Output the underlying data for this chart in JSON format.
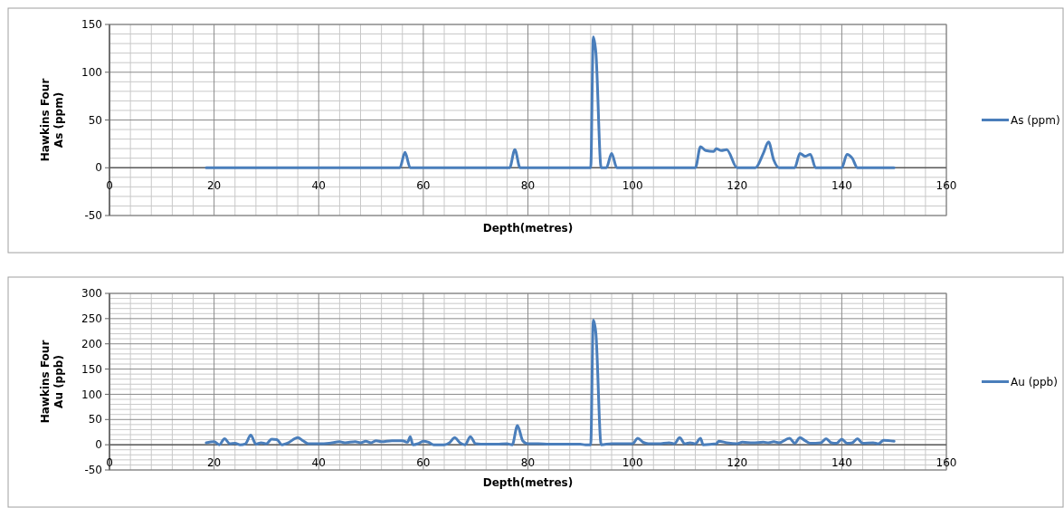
{
  "chart_data": [
    {
      "type": "line",
      "xlabel": "Depth(metres)",
      "ylabel": "Hawkins Four\nAs (ppm)",
      "xlim": [
        0,
        160
      ],
      "xticks": [
        0,
        20,
        40,
        60,
        80,
        100,
        120,
        140,
        160
      ],
      "ylim": [
        -50,
        150
      ],
      "yticks": [
        -50,
        0,
        50,
        100,
        150
      ],
      "grid": true,
      "legend": "right",
      "series": [
        {
          "name": "As (ppm)",
          "color": "#4a7ebb",
          "x": [
            18.5,
            55.5,
            56.5,
            57.5,
            76.5,
            77.5,
            78.5,
            92,
            92.5,
            93,
            94,
            95,
            96,
            97,
            112,
            113,
            114,
            115.5,
            116,
            117,
            118,
            120,
            123.5,
            125,
            126,
            127,
            128,
            130,
            131,
            132,
            133,
            134,
            135,
            140,
            141,
            142,
            143,
            150
          ],
          "values": [
            0,
            0,
            16,
            0,
            0,
            19,
            0,
            0,
            137,
            120,
            0,
            0,
            15,
            0,
            0,
            22,
            18,
            17,
            20,
            18,
            19,
            0,
            0,
            15,
            27,
            8,
            0,
            0,
            0,
            15,
            12,
            14,
            0,
            0,
            14,
            10,
            0,
            0
          ]
        }
      ]
    },
    {
      "type": "line",
      "xlabel": "Depth(metres)",
      "ylabel": "Hawkins Four\nAu (ppb)",
      "xlim": [
        0,
        160
      ],
      "xticks": [
        0,
        20,
        40,
        60,
        80,
        100,
        120,
        140,
        160
      ],
      "ylim": [
        -50,
        300
      ],
      "yticks": [
        -50,
        0,
        50,
        100,
        150,
        200,
        250,
        300
      ],
      "grid": true,
      "legend": "right",
      "series": [
        {
          "name": "Au (ppb)",
          "color": "#4a7ebb",
          "x": [
            18.5,
            20,
            21,
            22,
            23,
            24,
            25,
            26,
            27,
            28,
            29,
            30,
            31,
            32,
            33,
            34,
            36,
            37,
            38,
            40,
            42,
            44,
            45,
            47,
            48,
            49,
            50,
            51,
            52,
            54,
            56,
            57,
            57.5,
            58,
            59,
            60,
            61,
            62,
            64,
            65,
            66,
            67,
            68,
            69,
            70,
            72,
            74,
            76,
            77,
            78,
            79,
            80,
            82,
            84,
            86,
            88,
            90,
            91,
            92,
            92.5,
            93,
            94,
            96,
            98,
            100,
            101,
            102,
            103,
            105,
            107,
            108,
            109,
            110,
            111,
            112,
            113,
            113.5,
            116,
            116.5,
            118,
            120,
            121,
            123,
            125,
            126,
            127,
            128,
            130,
            131,
            132,
            133,
            134,
            136,
            137,
            138,
            139,
            140,
            141,
            142,
            143,
            144,
            146,
            147,
            148,
            150
          ],
          "values": [
            4,
            6,
            0,
            12,
            2,
            3,
            0,
            2,
            19,
            1,
            4,
            2,
            11,
            10,
            0,
            3,
            14,
            8,
            2,
            2,
            3,
            6,
            4,
            6,
            4,
            7,
            4,
            8,
            6,
            8,
            8,
            5,
            16,
            0,
            2,
            7,
            5,
            0,
            0,
            4,
            14,
            4,
            0,
            16,
            2,
            1,
            1,
            2,
            0,
            38,
            8,
            2,
            2,
            1,
            1,
            1,
            1,
            0,
            0,
            247,
            220,
            0,
            2,
            2,
            2,
            13,
            5,
            2,
            2,
            4,
            2,
            14,
            2,
            4,
            2,
            13,
            0,
            2,
            7,
            4,
            2,
            5,
            4,
            5,
            4,
            6,
            4,
            13,
            3,
            14,
            8,
            3,
            4,
            12,
            4,
            3,
            11,
            3,
            4,
            12,
            3,
            4,
            2,
            9,
            7
          ]
        }
      ]
    }
  ]
}
